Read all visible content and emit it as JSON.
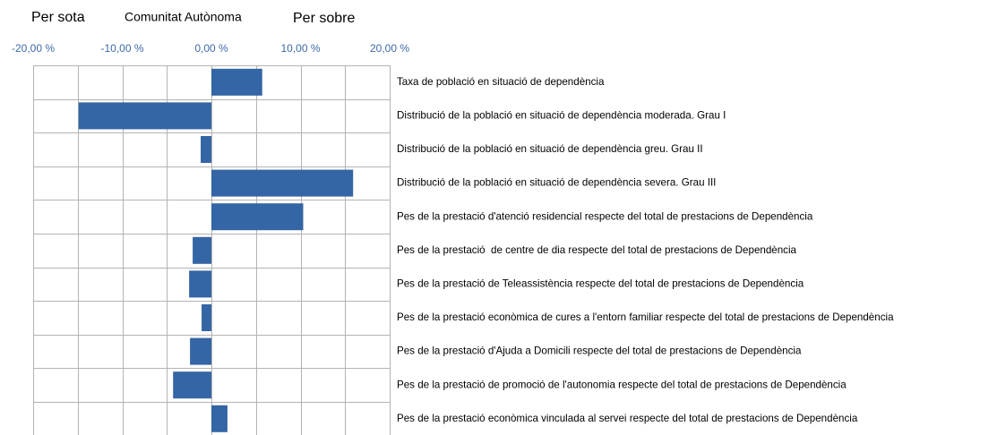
{
  "chart_data": {
    "type": "bar",
    "orientation": "horizontal",
    "legend_labels": {
      "below": "Per sota",
      "middle": "Comunitat Autònoma",
      "above": "Per sobre"
    },
    "categories": [
      "Taxa de població en situació de dependència",
      "Distribució de la població en situació de dependència moderada. Grau I",
      "Distribució de la població en situació de dependència greu. Grau II",
      "Distribució de la població en situació de dependència severa. Grau III",
      "Pes de la prestació d'atenció residencial respecte del total de prestacions de Dependència",
      "Pes de la prestació  de centre de dia respecte del total de prestacions de Dependència",
      "Pes de la prestació de Teleassistència respecte del total de prestacions de Dependència",
      "Pes de la prestació econòmica de cures a l'entorn familiar respecte del total de prestacions de Dependència",
      "Pes de la prestació d'Ajuda a Domicili respecte del total de prestacions de Dependència",
      "Pes de la prestació de promoció de l'autonomia respecte del total de prestacions de Dependència",
      "Pes de la prestació econòmica vinculada al servei respecte del total de prestacions de Dependència"
    ],
    "values": [
      5.7,
      -14.9,
      -1.2,
      15.9,
      10.3,
      -2.1,
      -2.5,
      -1.1,
      -2.4,
      -4.3,
      1.8
    ],
    "color": "#3465a4",
    "xlim": [
      -20,
      20
    ],
    "xticks": [
      {
        "value": -20,
        "label": "-20,00 %"
      },
      {
        "value": -10,
        "label": "-10,00 %"
      },
      {
        "value": 0,
        "label": "0,00 %"
      },
      {
        "value": 10,
        "label": "10,00 %"
      },
      {
        "value": 20,
        "label": "20,00 %"
      }
    ],
    "xminor": [
      -15,
      -5,
      5,
      15
    ],
    "grid": true
  }
}
